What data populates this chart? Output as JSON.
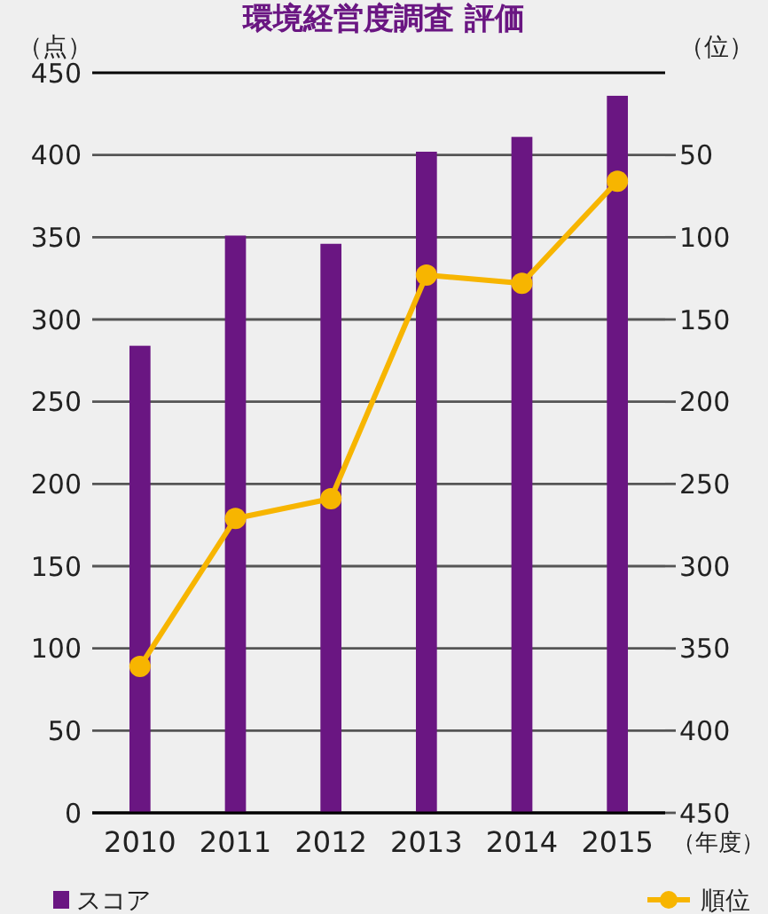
{
  "chart_data": {
    "type": "bar",
    "title": "環境経営度調査 評価",
    "ylabel": "（点）",
    "y2label": "（位）",
    "xlabel": "（年度）",
    "categories": [
      "2010",
      "2011",
      "2012",
      "2013",
      "2014",
      "2015"
    ],
    "series": [
      {
        "name": "スコア",
        "color": "#6a1682",
        "values": [
          284,
          351,
          346,
          402,
          411,
          436
        ]
      },
      {
        "name": "順位",
        "type": "line",
        "axis": "y2",
        "color": "#f7b500",
        "marker": "circle",
        "values": [
          361,
          271,
          259,
          123,
          128,
          66
        ]
      }
    ],
    "ylim": [
      0,
      450
    ],
    "yticks": [
      0,
      50,
      100,
      150,
      200,
      250,
      300,
      350,
      400,
      450
    ],
    "y2lim": [
      450,
      0
    ],
    "y2ticks": [
      50,
      100,
      150,
      200,
      250,
      300,
      350,
      400,
      450
    ],
    "grid": "y",
    "legend": "bottom"
  }
}
